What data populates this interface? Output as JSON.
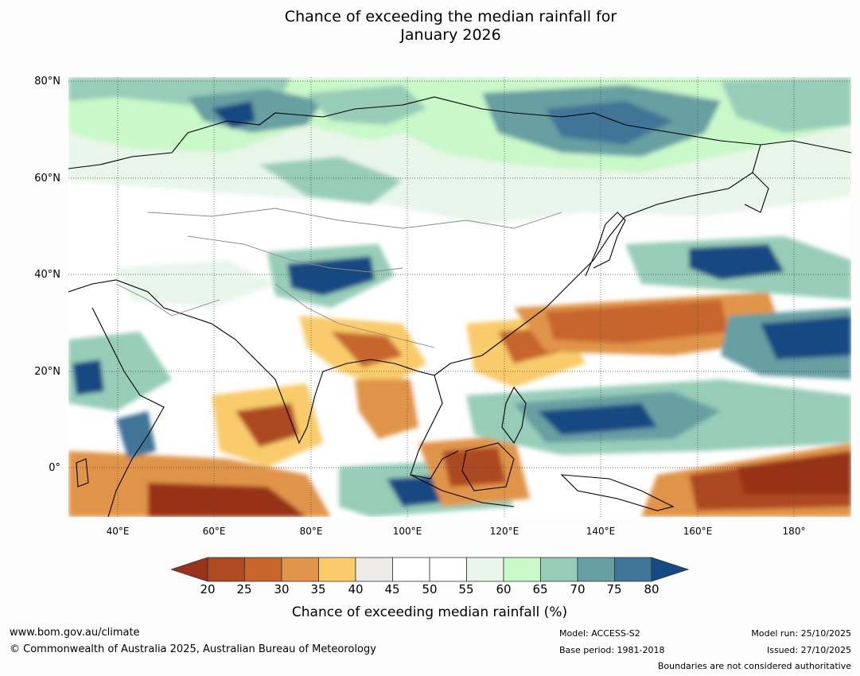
{
  "title": {
    "line1": "Chance of exceeding the median rainfall for",
    "line2": "January 2026"
  },
  "map": {
    "lat_labels": [
      "80°N",
      "60°N",
      "40°N",
      "20°N",
      "0°"
    ],
    "lon_labels": [
      "40°E",
      "60°E",
      "80°E",
      "100°E",
      "120°E",
      "140°E",
      "160°E",
      "180°"
    ],
    "lon_range": [
      30,
      192
    ],
    "lat_range": [
      -10,
      81
    ],
    "regions": [
      {
        "name": "arctic-north-atlantic",
        "category": "70-75"
      },
      {
        "name": "barents-sea",
        "category": "80+"
      },
      {
        "name": "north-russia",
        "category": "60-65"
      },
      {
        "name": "east-siberia",
        "category": "70-75"
      },
      {
        "name": "mongolia-northwest-china",
        "category": "80+"
      },
      {
        "name": "tibet-himalaya",
        "category": "30-35"
      },
      {
        "name": "arabian-sea",
        "category": "20-25"
      },
      {
        "name": "somalia-coast",
        "category": "75-80"
      },
      {
        "name": "east-africa-equatorial",
        "category": "20-25"
      },
      {
        "name": "south-china-taiwan",
        "category": "30-35"
      },
      {
        "name": "subtropical-north-pacific",
        "category": "25-30"
      },
      {
        "name": "north-pacific-40N",
        "category": "80+"
      },
      {
        "name": "philippine-sea",
        "category": "75-80"
      },
      {
        "name": "borneo-java",
        "category": "25-30"
      },
      {
        "name": "indian-ocean-south",
        "category": "75-80"
      },
      {
        "name": "equatorial-central-pacific",
        "category": "20-25"
      },
      {
        "name": "central-pacific-20N",
        "category": "80+"
      }
    ]
  },
  "colorbar": {
    "ticks": [
      "20",
      "25",
      "30",
      "35",
      "40",
      "45",
      "50",
      "55",
      "60",
      "65",
      "70",
      "75",
      "80"
    ],
    "colors": [
      "#983219",
      "#ad4a23",
      "#c7652d",
      "#e0944a",
      "#f9cb6a",
      "#ecebe6",
      "#ffffff",
      "#ffffff",
      "#e8f6e9",
      "#c9f8c9",
      "#97cdb8",
      "#679fa2",
      "#417597",
      "#164a82"
    ],
    "label": "Chance of exceeding median rainfall (%)"
  },
  "footer": {
    "url": "www.bom.gov.au/climate",
    "copyright": "© Commonwealth of Australia 2025, Australian Bureau of Meteorology",
    "model": "Model: ACCESS-S2",
    "base_period": "Base period: 1981-2018",
    "model_run": "Model run: 25/10/2025",
    "issued": "Issued: 27/10/2025",
    "disclaimer": "Boundaries are not considered authoritative"
  }
}
